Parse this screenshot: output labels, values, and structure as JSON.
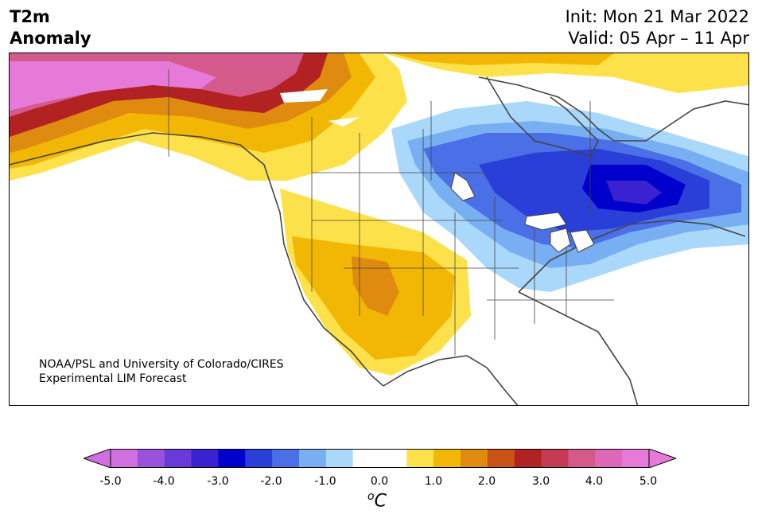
{
  "title": {
    "line1": "T2m",
    "line2": "Anomaly"
  },
  "dates": {
    "init": "Init: Mon 21 Mar 2022",
    "valid": "Valid: 05 Apr – 11 Apr"
  },
  "credit": {
    "line1": "NOAA/PSL and University of Colorado/CIRES",
    "line2": "Experimental LIM Forecast"
  },
  "colorbar": {
    "ticks": [
      "-5.0",
      "-4.0",
      "-3.0",
      "-2.0",
      "-1.0",
      "0.0",
      "1.0",
      "2.0",
      "3.0",
      "4.0",
      "5.0"
    ],
    "unit_symbol": "o",
    "unit_letter": "C",
    "colors": [
      "#d070e0",
      "#9a52dc",
      "#6a3ad8",
      "#3a22d0",
      "#0000cc",
      "#2a3ed8",
      "#4a6fe6",
      "#78aef2",
      "#aad8fb",
      "#ffffff",
      "#ffffff",
      "#fde14a",
      "#f2b705",
      "#df8b10",
      "#c75416",
      "#b22222",
      "#c73a55",
      "#d45a8c",
      "#de68b8",
      "#e77ad8"
    ],
    "under_color": "#d070e0",
    "over_color": "#e77ad8"
  }
}
